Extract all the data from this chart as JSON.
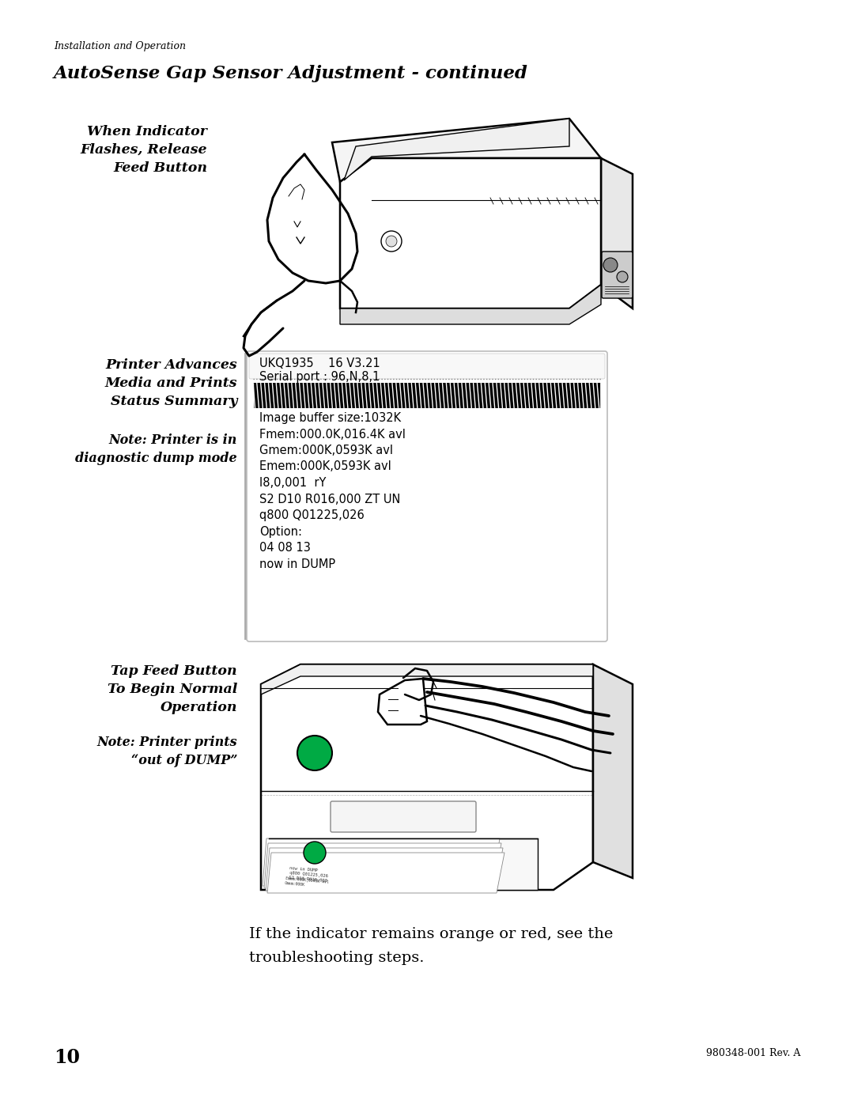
{
  "bg_color": "#ffffff",
  "page_width": 10.8,
  "page_height": 13.97,
  "header_italic": "Installation and Operation",
  "title": "AutoSense Gap Sensor Adjustment - continued",
  "section1_label_line1": "When Indicator",
  "section1_label_line2": "Flashes, Release",
  "section1_label_line3": "Feed Button",
  "section2_label_line1": "Printer Advances",
  "section2_label_line2": "Media and Prints",
  "section2_label_line3": "Status Summary",
  "section2_note_line1": "Note: Printer is in",
  "section2_note_line2": "diagnostic dump mode",
  "status_lines": [
    "UKQ1935    16 V3.21",
    "Serial port : 96,N,8,1",
    "Image buffer size:1032K",
    "Fmem:000.0K,016.4K avl",
    "Gmem:000K,0593K avl",
    "Emem:000K,0593K avl",
    "I8,0,001  rY",
    "S2 D10 R016,000 ZT UN",
    "q800 Q01225,026",
    "Option:",
    "04 08 13",
    "now in DUMP"
  ],
  "section3_label_line1": "Tap Feed Button",
  "section3_label_line2": "To Begin Normal",
  "section3_label_line3": "Operation",
  "section3_note_line1": "Note: Printer prints",
  "section3_note_line2": "“out of DUMP”",
  "footer_text_line1": "If the indicator remains orange or red, see the",
  "footer_text_line2": "troubleshooting steps.",
  "page_number": "10",
  "doc_number": "980348-001 Rev. A",
  "lw_main": 1.8,
  "lw_detail": 1.0,
  "printer_color": "#000000",
  "green_color": "#00aa44"
}
